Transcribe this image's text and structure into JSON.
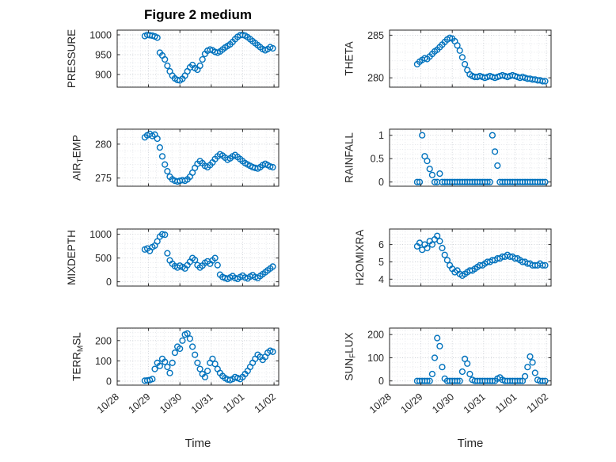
{
  "chart_data": {
    "type": "scatter",
    "title": "Figure 2 medium",
    "xlabel": "Time",
    "marker": "o",
    "marker_color": "#0072BD",
    "grid": true,
    "minor_grid": true,
    "xlim": [
      0,
      5.15
    ],
    "x_unit": "days since 10/28",
    "xticks": {
      "values": [
        0,
        1,
        2,
        3,
        4,
        5
      ],
      "labels": [
        "10/28",
        "10/29",
        "10/30",
        "10/31",
        "11/01",
        "11/02"
      ]
    },
    "x": [
      0.88,
      0.96,
      1.04,
      1.12,
      1.2,
      1.28,
      1.36,
      1.44,
      1.52,
      1.6,
      1.68,
      1.76,
      1.84,
      1.92,
      2,
      2.08,
      2.16,
      2.24,
      2.32,
      2.4,
      2.48,
      2.56,
      2.64,
      2.72,
      2.8,
      2.88,
      2.96,
      3.04,
      3.12,
      3.2,
      3.28,
      3.36,
      3.44,
      3.52,
      3.6,
      3.68,
      3.76,
      3.84,
      3.92,
      4,
      4.08,
      4.16,
      4.24,
      4.32,
      4.4,
      4.48,
      4.56,
      4.64,
      4.72,
      4.8,
      4.88,
      4.96
    ],
    "charts": [
      {
        "name": "pressure",
        "ylabel": "PRESSURE",
        "ylabel_parts": [
          {
            "text": "PRESSURE",
            "sub": false
          }
        ],
        "yticks": [
          900,
          950,
          1000
        ],
        "ylim": [
          868,
          1012
        ],
        "values": [
          997,
          1000,
          999,
          998,
          996,
          993,
          955,
          948,
          938,
          922,
          908,
          897,
          890,
          886,
          885,
          889,
          897,
          908,
          918,
          924,
          916,
          912,
          922,
          938,
          952,
          960,
          963,
          961,
          957,
          955,
          958,
          963,
          968,
          972,
          976,
          982,
          989,
          995,
          999,
          1000,
          998,
          994,
          989,
          984,
          979,
          974,
          969,
          964,
          961,
          964,
          969,
          966
        ]
      },
      {
        "name": "theta",
        "ylabel": "THETA",
        "ylabel_parts": [
          {
            "text": "THETA",
            "sub": false
          }
        ],
        "yticks": [
          280,
          285
        ],
        "ylim": [
          278.9,
          285.6
        ],
        "values": [
          281.6,
          281.9,
          282.1,
          282.3,
          282.2,
          282.5,
          282.8,
          283.1,
          283.3,
          283.6,
          283.9,
          284.2,
          284.5,
          284.7,
          284.6,
          284.3,
          283.8,
          283.2,
          282.4,
          281.6,
          280.9,
          280.4,
          280.2,
          280.1,
          280.1,
          280.2,
          280.1,
          280,
          280.1,
          280.2,
          280.1,
          280,
          280.1,
          280.2,
          280.3,
          280.2,
          280.1,
          280.2,
          280.3,
          280.2,
          280.1,
          280,
          280.1,
          280,
          279.9,
          279.9,
          279.8,
          279.8,
          279.7,
          279.7,
          279.6,
          279.6
        ]
      },
      {
        "name": "air_temp",
        "ylabel": "AIR_TEMP",
        "ylabel_parts": [
          {
            "text": "AIR",
            "sub": false
          },
          {
            "text": "T",
            "sub": true
          },
          {
            "text": "EMP",
            "sub": false
          }
        ],
        "yticks": [
          275,
          280
        ],
        "ylim": [
          273.8,
          282.2
        ],
        "values": [
          281,
          281.3,
          281.5,
          281.2,
          281.4,
          280.8,
          279.5,
          278.2,
          277,
          276,
          275.2,
          274.8,
          274.6,
          274.5,
          274.6,
          274.7,
          274.6,
          274.8,
          275.2,
          275.8,
          276.5,
          277.1,
          277.5,
          277.2,
          276.8,
          276.6,
          276.9,
          277.3,
          277.8,
          278.2,
          278.5,
          278.3,
          278,
          277.7,
          277.9,
          278.2,
          278.4,
          278.1,
          277.8,
          277.5,
          277.2,
          277,
          276.8,
          276.6,
          276.5,
          276.4,
          276.6,
          276.9,
          277.1,
          276.9,
          276.7,
          276.6
        ]
      },
      {
        "name": "rainfall",
        "ylabel": "RAINFALL",
        "ylabel_parts": [
          {
            "text": "RAINFALL",
            "sub": false
          }
        ],
        "yticks": [
          0,
          0.5,
          1
        ],
        "ylim": [
          -0.09,
          1.13
        ],
        "values": [
          0,
          0,
          1,
          0.55,
          0.45,
          0.28,
          0.15,
          0,
          0,
          0.18,
          0,
          0,
          0,
          0,
          0,
          0,
          0,
          0,
          0,
          0,
          0,
          0,
          0,
          0,
          0,
          0,
          0,
          0,
          0,
          0,
          1,
          0.65,
          0.35,
          0,
          0,
          0,
          0,
          0,
          0,
          0,
          0,
          0,
          0,
          0,
          0,
          0,
          0,
          0,
          0,
          0,
          0,
          0
        ]
      },
      {
        "name": "mixdepth",
        "ylabel": "MIXDEPTH",
        "ylabel_parts": [
          {
            "text": "MIXDEPTH",
            "sub": false
          }
        ],
        "yticks": [
          0,
          500,
          1000
        ],
        "ylim": [
          -90,
          1110
        ],
        "values": [
          680,
          700,
          650,
          730,
          760,
          850,
          950,
          1000,
          990,
          600,
          450,
          380,
          330,
          300,
          340,
          310,
          280,
          350,
          420,
          500,
          460,
          350,
          300,
          340,
          400,
          430,
          380,
          450,
          500,
          350,
          150,
          100,
          80,
          60,
          90,
          120,
          80,
          60,
          100,
          130,
          90,
          70,
          110,
          140,
          100,
          80,
          120,
          160,
          200,
          240,
          280,
          320
        ]
      },
      {
        "name": "h2omixra",
        "ylabel": "H2OMIXRA",
        "ylabel_parts": [
          {
            "text": "H2OMIXRA",
            "sub": false
          }
        ],
        "yticks": [
          4,
          5,
          6
        ],
        "ylim": [
          3.6,
          6.9
        ],
        "values": [
          5.9,
          6.1,
          5.7,
          6,
          5.8,
          6.2,
          6,
          6.3,
          6.5,
          6.2,
          5.8,
          5.4,
          5.1,
          4.8,
          4.6,
          4.4,
          4.5,
          4.3,
          4.2,
          4.3,
          4.4,
          4.5,
          4.5,
          4.6,
          4.7,
          4.8,
          4.8,
          4.9,
          5,
          5,
          5.1,
          5.1,
          5.2,
          5.2,
          5.3,
          5.3,
          5.4,
          5.3,
          5.3,
          5.2,
          5.2,
          5.1,
          5,
          5,
          4.9,
          4.9,
          4.8,
          4.8,
          4.8,
          4.9,
          4.8,
          4.8
        ]
      },
      {
        "name": "terr_msl",
        "ylabel": "TERR_MSL",
        "ylabel_parts": [
          {
            "text": "TERR",
            "sub": false
          },
          {
            "text": "M",
            "sub": true
          },
          {
            "text": "SL",
            "sub": false
          }
        ],
        "yticks": [
          0,
          100,
          200
        ],
        "ylim": [
          -20,
          262
        ],
        "values": [
          2,
          3,
          5,
          10,
          60,
          90,
          75,
          110,
          95,
          70,
          40,
          90,
          140,
          170,
          160,
          200,
          230,
          235,
          210,
          170,
          130,
          90,
          60,
          35,
          20,
          50,
          90,
          110,
          85,
          60,
          40,
          25,
          15,
          8,
          5,
          10,
          20,
          15,
          10,
          20,
          35,
          50,
          70,
          90,
          110,
          130,
          120,
          105,
          120,
          140,
          150,
          145
        ]
      },
      {
        "name": "sun_flux",
        "ylabel": "SUN_FLUX",
        "ylabel_parts": [
          {
            "text": "SUN",
            "sub": false
          },
          {
            "text": "F",
            "sub": true
          },
          {
            "text": "LUX",
            "sub": false
          }
        ],
        "yticks": [
          0,
          100,
          200
        ],
        "ylim": [
          -18,
          228
        ],
        "values": [
          0,
          0,
          0,
          0,
          0,
          0,
          30,
          100,
          185,
          150,
          60,
          10,
          0,
          0,
          0,
          0,
          0,
          0,
          40,
          95,
          75,
          30,
          5,
          0,
          0,
          0,
          0,
          0,
          0,
          0,
          0,
          0,
          10,
          15,
          5,
          0,
          0,
          0,
          0,
          0,
          0,
          0,
          0,
          20,
          60,
          105,
          80,
          35,
          5,
          0,
          0,
          0
        ]
      }
    ]
  }
}
